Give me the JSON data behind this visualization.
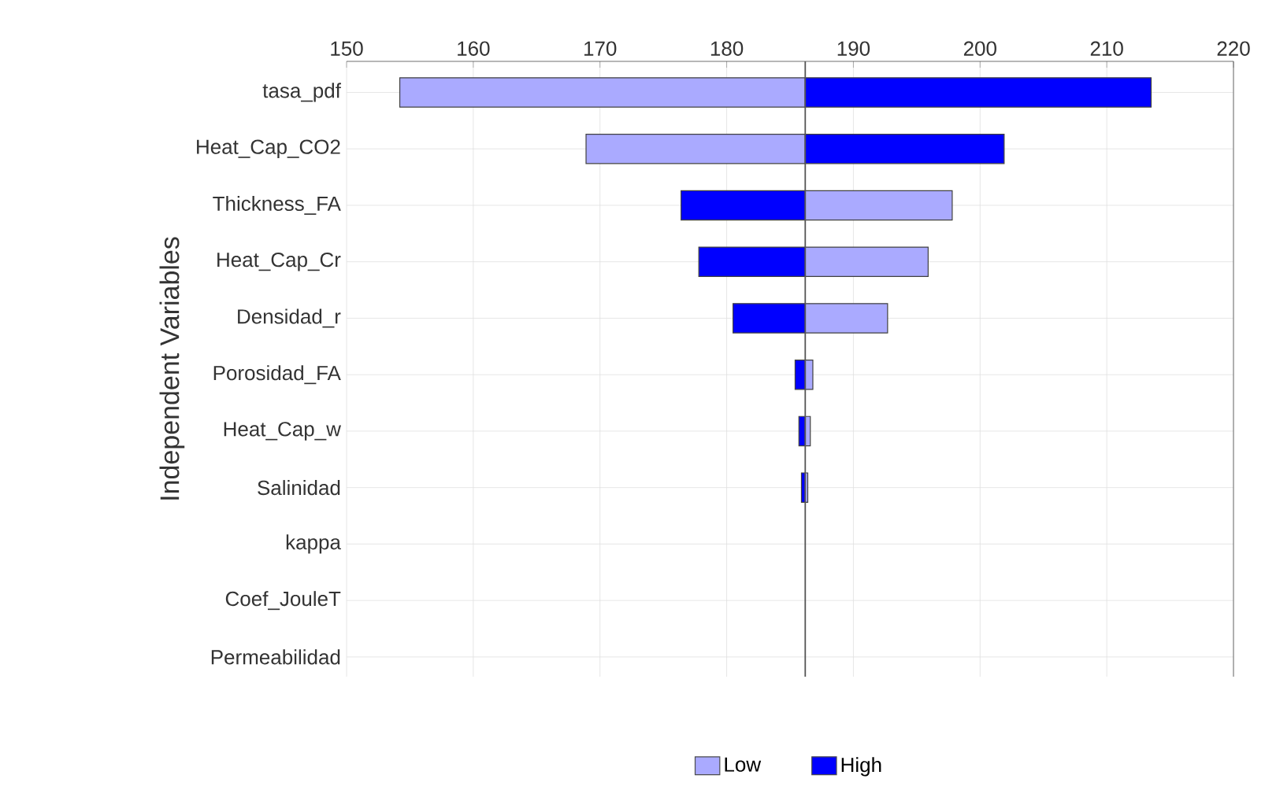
{
  "chart_data": {
    "type": "bar",
    "orientation": "horizontal",
    "ylabel": "Independent Variables",
    "categories": [
      "tasa_pdf",
      "Heat_Cap_CO2",
      "Thickness_FA",
      "Heat_Cap_Cr",
      "Densidad_r",
      "Porosidad_FA",
      "Heat_Cap_w",
      "Salinidad",
      "kappa",
      "Coef_JouleT",
      "Permeabilidad"
    ],
    "series": [
      {
        "name": "Low",
        "color": "#aaaaff",
        "base": [
          186.2,
          186.2,
          186.2,
          186.2,
          186.2,
          186.2,
          186.2,
          186.2,
          null,
          null,
          null
        ],
        "values": [
          -32.0,
          -17.3,
          11.6,
          9.7,
          6.5,
          0.6,
          0.4,
          0.2,
          null,
          null,
          null
        ]
      },
      {
        "name": "High",
        "color": "#0000ff",
        "base": [
          186.2,
          186.2,
          186.2,
          186.2,
          186.2,
          186.2,
          186.2,
          186.2,
          null,
          null,
          null
        ],
        "values": [
          27.3,
          15.7,
          -9.8,
          -8.4,
          -5.7,
          -0.8,
          -0.5,
          -0.3,
          null,
          null,
          null
        ]
      }
    ],
    "xlim": [
      150,
      220
    ],
    "xticks": [
      150,
      160,
      170,
      180,
      190,
      200,
      210,
      220
    ],
    "ref_lines": [
      {
        "axis": "x",
        "value": 186.2,
        "color": "#555555"
      }
    ],
    "grid": true,
    "legend": "bottom"
  }
}
